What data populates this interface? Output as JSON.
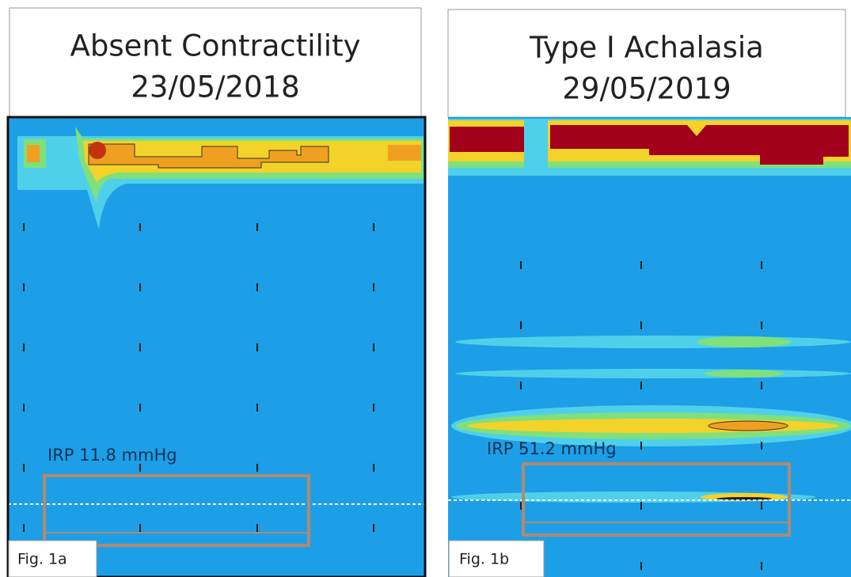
{
  "panels": [
    {
      "title": "Absent Contractility",
      "date": "23/05/2018",
      "irp": "IRP 11.8 mmHg",
      "label": "Fig. 1a"
    },
    {
      "title": "Type I Achalasia",
      "date": "29/05/2019",
      "irp": "IRP 51.2 mmHg",
      "label": "Fig. 1b"
    }
  ]
}
